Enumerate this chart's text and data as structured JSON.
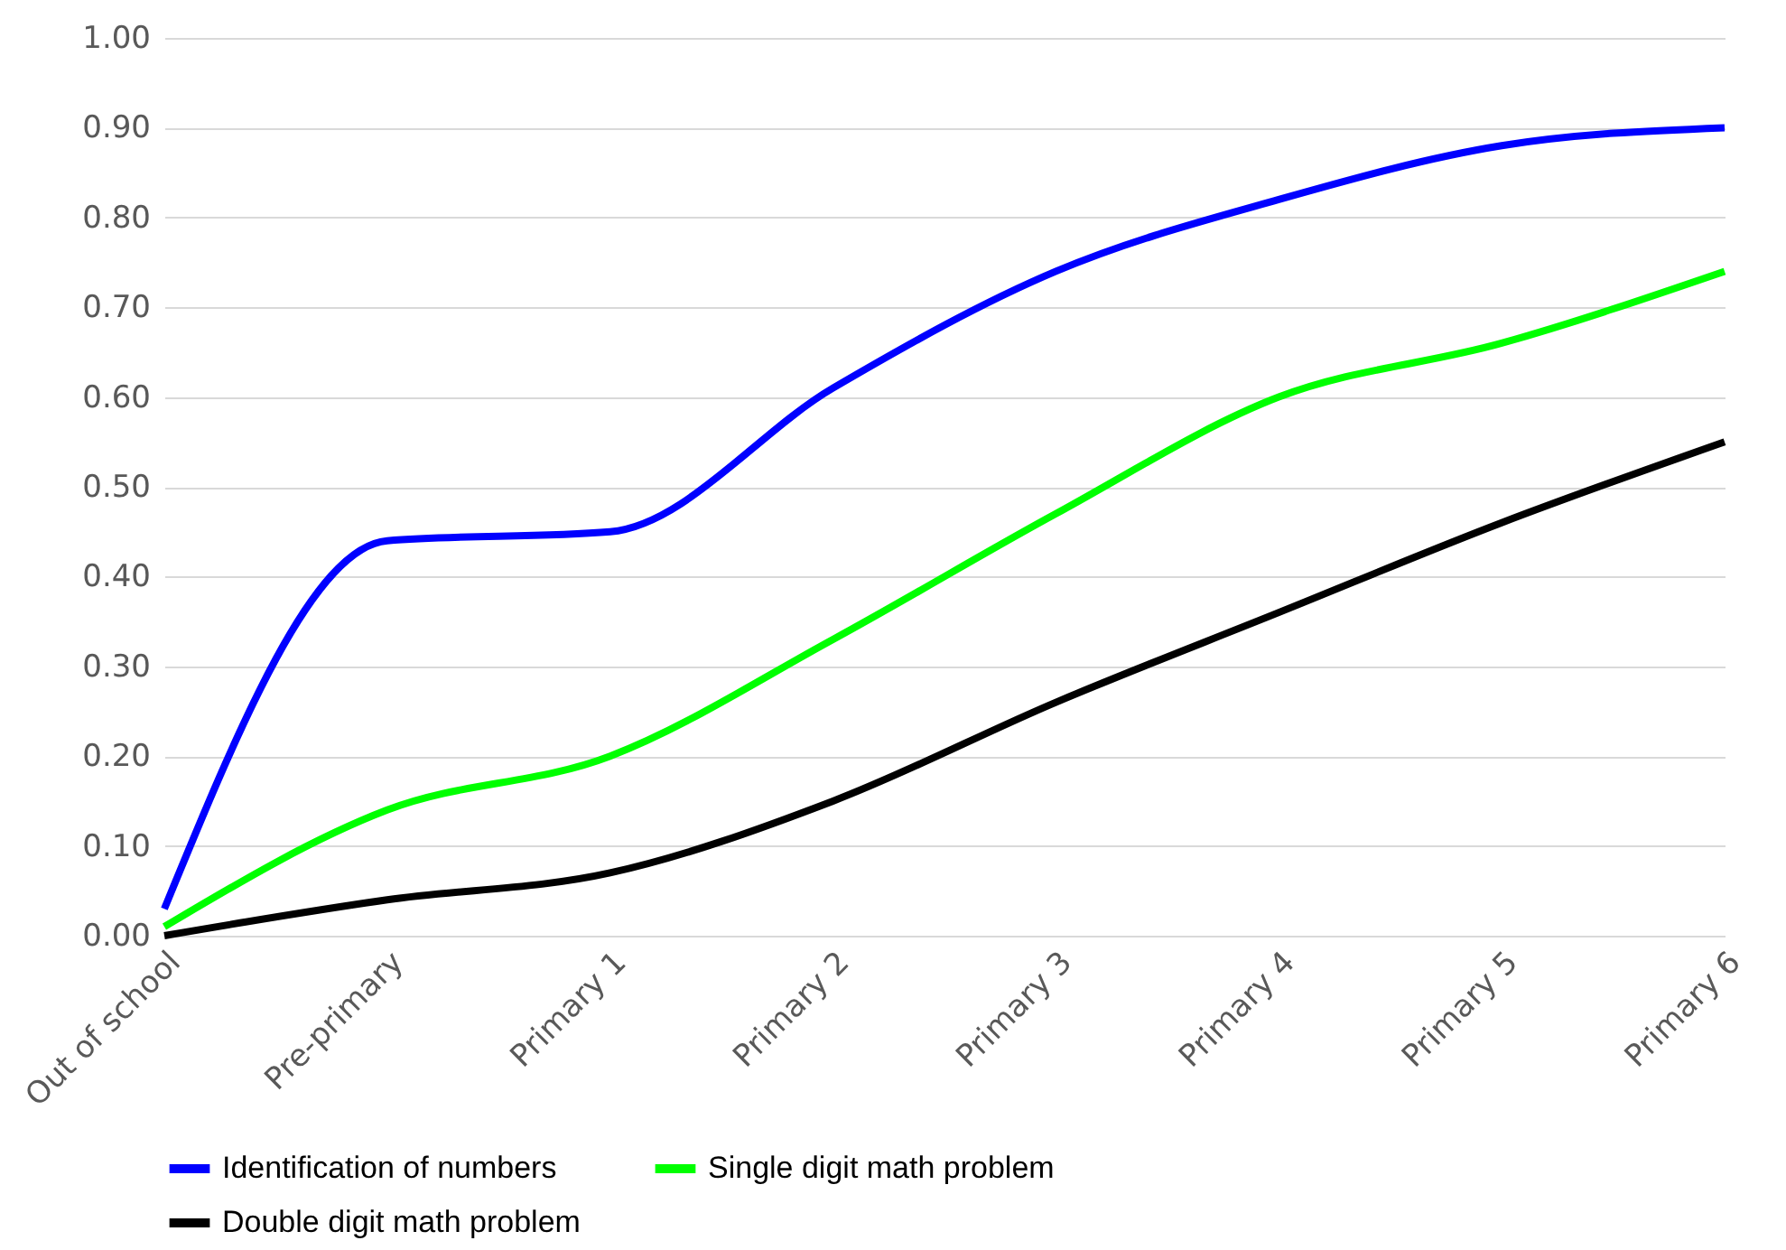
{
  "chart_data": {
    "type": "line",
    "categories": [
      "Out of school",
      "Pre-primary",
      "Primary 1",
      "Primary 2",
      "Primary 3",
      "Primary 4",
      "Primary 5",
      "Primary 6"
    ],
    "series": [
      {
        "name": "Identification of numbers",
        "color": "#0000ff",
        "values": [
          0.03,
          0.44,
          0.45,
          0.61,
          0.74,
          0.82,
          0.88,
          0.9
        ]
      },
      {
        "name": "Single digit math problem",
        "color": "#00ff00",
        "values": [
          0.01,
          0.14,
          0.2,
          0.33,
          0.47,
          0.6,
          0.66,
          0.74
        ]
      },
      {
        "name": "Double digit math problem",
        "color": "#000000",
        "values": [
          0.0,
          0.04,
          0.07,
          0.15,
          0.26,
          0.36,
          0.46,
          0.55
        ]
      }
    ],
    "ylim": [
      0,
      1
    ],
    "yticks": [
      {
        "value": 0,
        "label": "0.00"
      },
      {
        "value": 0.1,
        "label": "0.10"
      },
      {
        "value": 0.2,
        "label": "0.20"
      },
      {
        "value": 0.3,
        "label": "0.30"
      },
      {
        "value": 0.4,
        "label": "0.40"
      },
      {
        "value": 0.5,
        "label": "0.50"
      },
      {
        "value": 0.6,
        "label": "0.60"
      },
      {
        "value": 0.7,
        "label": "0.70"
      },
      {
        "value": 0.8,
        "label": "0.80"
      },
      {
        "value": 0.9,
        "label": "0.90"
      },
      {
        "value": 1,
        "label": "1.00"
      }
    ],
    "grid": "y",
    "legend": "bottom",
    "marker": "none",
    "line_style": "solid"
  }
}
